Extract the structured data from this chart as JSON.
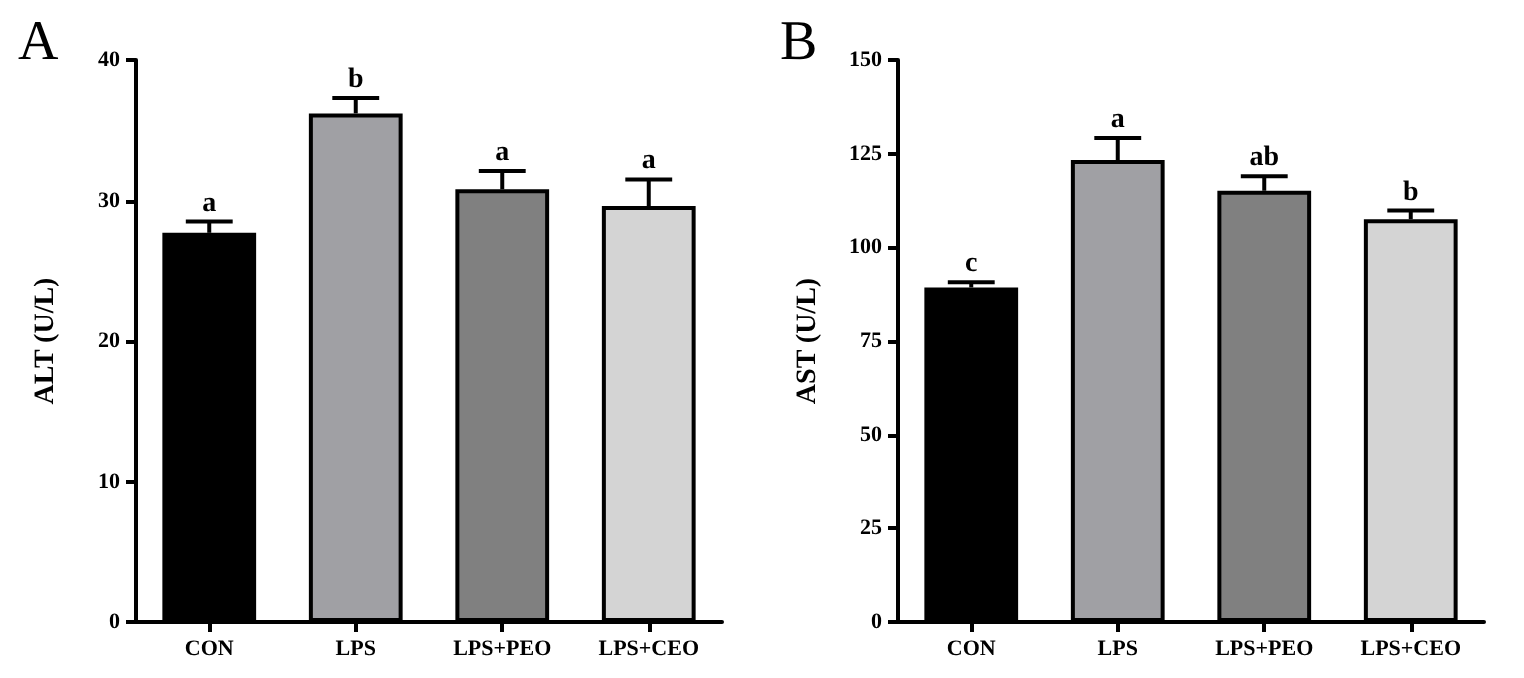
{
  "chart_data": [
    {
      "type": "bar",
      "title": "A",
      "ylabel": "ALT (U/L)",
      "categories": [
        "CON",
        "LPS",
        "LPS+PEO",
        "LPS+CEO"
      ],
      "values": [
        27.7,
        36.2,
        30.8,
        29.6
      ],
      "colors": [
        "#000000",
        "#a0a0a4",
        "#808080",
        "#d4d4d4"
      ],
      "errors": [
        [
          27.7,
          28.5
        ],
        [
          36.2,
          37.3
        ],
        [
          30.8,
          32.1
        ],
        [
          29.6,
          31.5
        ]
      ],
      "ylim": [
        0,
        40
      ],
      "yticks": [
        0,
        10,
        20,
        30,
        40
      ],
      "grid": false,
      "annotations": [
        {
          "text": "a",
          "x": "CON",
          "y": 28.5
        },
        {
          "text": "b",
          "x": "LPS",
          "y": 37.3
        },
        {
          "text": "a",
          "x": "LPS+PEO",
          "y": 32.1
        },
        {
          "text": "a",
          "x": "LPS+CEO",
          "y": 31.5
        }
      ]
    },
    {
      "type": "bar",
      "title": "B",
      "ylabel": "AST (U/L)",
      "categories": [
        "CON",
        "LPS",
        "LPS+PEO",
        "LPS+CEO"
      ],
      "values": [
        89.3,
        123.3,
        115.1,
        107.5
      ],
      "colors": [
        "#000000",
        "#a0a0a4",
        "#808080",
        "#d4d4d4"
      ],
      "errors": [
        [
          89.3,
          90.7
        ],
        [
          123.3,
          129.2
        ],
        [
          115.1,
          119.0
        ],
        [
          107.5,
          109.8
        ]
      ],
      "ylim": [
        0,
        150
      ],
      "yticks": [
        0,
        25,
        50,
        75,
        100,
        125,
        150
      ],
      "grid": false,
      "annotations": [
        {
          "text": "c",
          "x": "CON",
          "y": 90.7
        },
        {
          "text": "a",
          "x": "LPS",
          "y": 129.2
        },
        {
          "text": "ab",
          "x": "LPS+PEO",
          "y": 119.0
        },
        {
          "text": "b",
          "x": "LPS+CEO",
          "y": 109.8
        }
      ]
    }
  ]
}
